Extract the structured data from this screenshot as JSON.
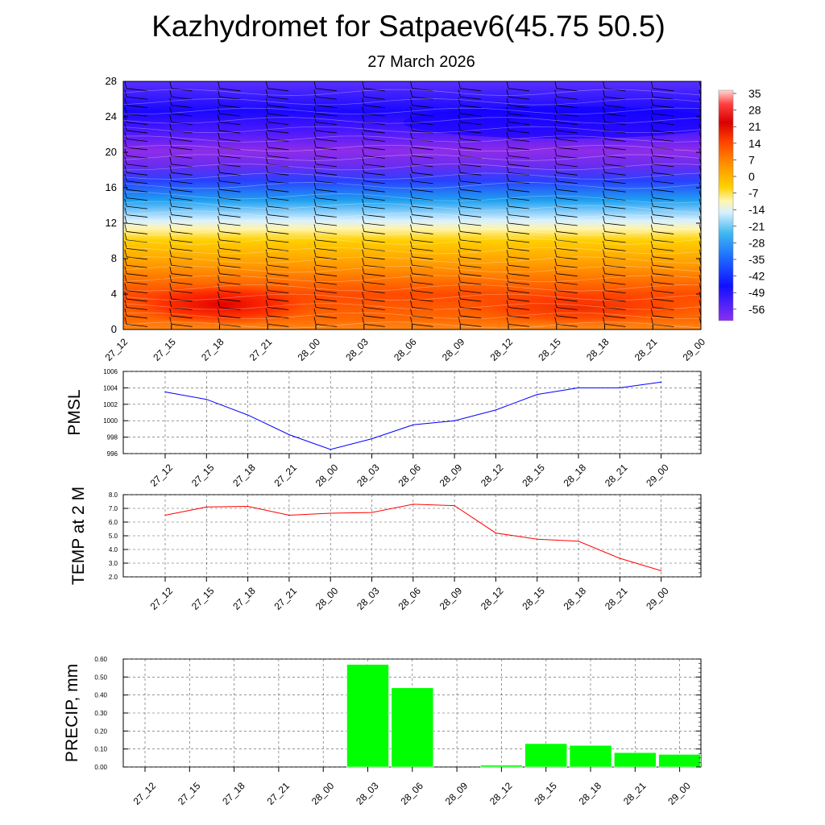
{
  "title": "Kazhydromet for Satpaev6(45.75 50.5)",
  "subtitle": "27 March 2026",
  "time_labels": [
    "27_12",
    "27_15",
    "27_18",
    "27_21",
    "28_00",
    "28_03",
    "28_06",
    "28_09",
    "28_12",
    "28_15",
    "28_18",
    "28_21",
    "29_00"
  ],
  "chart_data": [
    {
      "type": "heatmap",
      "name": "temperature-wind-cross-section",
      "title": "",
      "xlabel": "",
      "ylabel": "",
      "x": [
        "27_12",
        "27_15",
        "27_18",
        "27_21",
        "28_00",
        "28_03",
        "28_06",
        "28_09",
        "28_12",
        "28_15",
        "28_18",
        "28_21",
        "29_00"
      ],
      "yticks": [
        "0",
        "4",
        "8",
        "12",
        "16",
        "20",
        "24",
        "28"
      ],
      "ylim": [
        0,
        28
      ],
      "colorbar_labels": [
        "35",
        "28",
        "21",
        "14",
        "7",
        "0",
        "-7",
        "-14",
        "-21",
        "-28",
        "-35",
        "-42",
        "-49",
        "-56"
      ],
      "colors": [
        "#8b2ce8",
        "#2a10ff",
        "#1e90ff",
        "#8ad2f2",
        "#fff6c0",
        "#ffd000",
        "#ff7a00",
        "#ff2a00",
        "#cc0000"
      ]
    },
    {
      "type": "line",
      "name": "pmsl",
      "ylabel": "PMSL",
      "categories": [
        "27_12",
        "27_15",
        "27_18",
        "27_21",
        "28_00",
        "28_03",
        "28_06",
        "28_09",
        "28_12",
        "28_15",
        "28_18",
        "28_21",
        "29_00"
      ],
      "values": [
        1003.5,
        1002.6,
        1000.7,
        998.3,
        996.5,
        997.8,
        999.5,
        1000.0,
        1001.3,
        1003.2,
        1004.0,
        1004.0,
        1004.7
      ],
      "ylim": [
        996,
        1006
      ],
      "yticks": [
        "996",
        "998",
        "1000",
        "1002",
        "1004",
        "1006"
      ],
      "color": "#0000ff"
    },
    {
      "type": "line",
      "name": "temp-2m",
      "ylabel": "TEMP at 2 M",
      "categories": [
        "27_12",
        "27_15",
        "27_18",
        "27_21",
        "28_00",
        "28_03",
        "28_06",
        "28_09",
        "28_12",
        "28_15",
        "28_18",
        "28_21",
        "29_00"
      ],
      "values": [
        6.5,
        7.1,
        7.15,
        6.5,
        6.65,
        6.7,
        7.3,
        7.2,
        5.2,
        4.75,
        4.6,
        3.35,
        2.45
      ],
      "ylim": [
        2.0,
        8.0
      ],
      "yticks": [
        "2.0",
        "3.0",
        "4.0",
        "5.0",
        "6.0",
        "7.0",
        "8.0"
      ],
      "color": "#ff0000"
    },
    {
      "type": "bar",
      "name": "precip",
      "ylabel": "PRECIP, mm",
      "categories": [
        "27_12",
        "27_15",
        "27_18",
        "27_21",
        "28_00",
        "28_03",
        "28_06",
        "28_09",
        "28_12",
        "28_15",
        "28_18",
        "28_21",
        "29_00"
      ],
      "values": [
        0,
        0,
        0,
        0,
        0,
        0.57,
        0.44,
        0,
        0.01,
        0.13,
        0.12,
        0.08,
        0.07
      ],
      "ylim": [
        0,
        0.6
      ],
      "yticks": [
        "0.00",
        "0.10",
        "0.20",
        "0.30",
        "0.40",
        "0.50",
        "0.60"
      ],
      "color": "#00ff00"
    }
  ]
}
